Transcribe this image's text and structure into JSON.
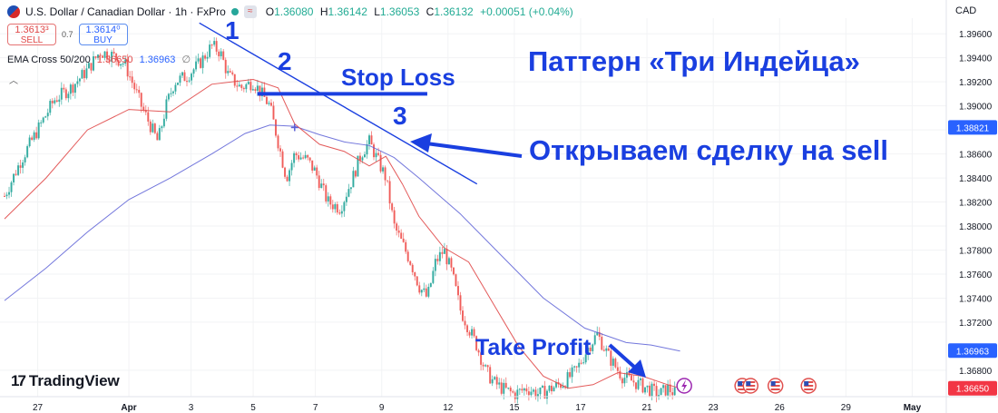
{
  "header": {
    "symbol": "U.S. Dollar / Canadian Dollar · 1h · FxPro",
    "badge": "≈",
    "ohlc": [
      {
        "k": "O",
        "v": "1.36080"
      },
      {
        "k": "H",
        "v": "1.36142"
      },
      {
        "k": "L",
        "v": "1.36053"
      },
      {
        "k": "C",
        "v": "1.36132"
      }
    ],
    "change": "+0.00051 (+0.04%)",
    "currency": "CAD"
  },
  "trade": {
    "sell_price": "1.3613³",
    "sell_label": "SELL",
    "spread": "0.7",
    "buy_price": "1.3614⁰",
    "buy_label": "BUY"
  },
  "indicator": {
    "name": "EMA Cross 50/200",
    "ema50": "1.36650",
    "ema200": "1.36963",
    "icon": "∅"
  },
  "collapse_icon": "chevron-up-icon",
  "logo": {
    "mark": "17",
    "text": "TradingView"
  },
  "annotations": {
    "pattern_title": "Паттерн «Три Индейца»",
    "p1": "1",
    "p2": "2",
    "p3": "3",
    "stop_loss": "Stop Loss",
    "open_trade": "Открываем сделку на sell",
    "take_profit": "Take Profit"
  },
  "colors": {
    "up": "#26a69a",
    "down": "#ef5350",
    "ema50": "#e04848",
    "ema200": "#5b5fd6",
    "annotation": "#1a3fe0",
    "tag_blue": "#2962ff",
    "tag_red": "#f23645"
  },
  "chart_data": {
    "type": "candlestick",
    "title": "U.S. Dollar / Canadian Dollar · 1h · FxPro",
    "ylim": [
      1.3658,
      1.3973
    ],
    "yticks": [
      "1.39600",
      "1.39400",
      "1.39200",
      "1.39000",
      "1.38800",
      "1.38600",
      "1.38400",
      "1.38200",
      "1.38000",
      "1.37800",
      "1.37600",
      "1.37400",
      "1.37200",
      "1.36800"
    ],
    "ytick_values": [
      1.396,
      1.394,
      1.392,
      1.39,
      1.388,
      1.386,
      1.384,
      1.382,
      1.38,
      1.378,
      1.376,
      1.374,
      1.372,
      1.368
    ],
    "xlim": [
      0,
      220
    ],
    "xticks": [
      {
        "label": "27",
        "t": 8
      },
      {
        "label": "Apr",
        "t": 30
      },
      {
        "label": "3",
        "t": 45
      },
      {
        "label": "5",
        "t": 60
      },
      {
        "label": "7",
        "t": 75
      },
      {
        "label": "9",
        "t": 91
      },
      {
        "label": "12",
        "t": 107
      },
      {
        "label": "15",
        "t": 123
      },
      {
        "label": "17",
        "t": 139
      },
      {
        "label": "21",
        "t": 155
      },
      {
        "label": "23",
        "t": 171
      },
      {
        "label": "26",
        "t": 187
      },
      {
        "label": "29",
        "t": 203
      },
      {
        "label": "May",
        "t": 219
      }
    ],
    "price_tags": [
      {
        "value": "1.38821",
        "y": 1.38821,
        "color": "#2962ff"
      },
      {
        "value": "1.36963",
        "y": 1.36963,
        "color": "#2962ff"
      },
      {
        "value": "1.36650",
        "y": 1.3665,
        "color": "#f23645"
      }
    ],
    "path": [
      [
        0,
        1.3825
      ],
      [
        4,
        1.3855
      ],
      [
        8,
        1.388
      ],
      [
        12,
        1.3905
      ],
      [
        16,
        1.3915
      ],
      [
        20,
        1.393
      ],
      [
        23,
        1.3945
      ],
      [
        26,
        1.3942
      ],
      [
        29,
        1.3935
      ],
      [
        31,
        1.3918
      ],
      [
        33,
        1.39
      ],
      [
        35,
        1.3885
      ],
      [
        37,
        1.387
      ],
      [
        39,
        1.39
      ],
      [
        41,
        1.392
      ],
      [
        44,
        1.3925
      ],
      [
        47,
        1.3935
      ],
      [
        50,
        1.395
      ],
      [
        52,
        1.3945
      ],
      [
        54,
        1.3925
      ],
      [
        57,
        1.3915
      ],
      [
        60,
        1.392
      ],
      [
        62,
        1.391
      ],
      [
        64,
        1.39
      ],
      [
        66,
        1.387
      ],
      [
        68,
        1.384
      ],
      [
        70,
        1.386
      ],
      [
        73,
        1.3855
      ],
      [
        75,
        1.3845
      ],
      [
        78,
        1.382
      ],
      [
        81,
        1.3815
      ],
      [
        84,
        1.384
      ],
      [
        86,
        1.386
      ],
      [
        88,
        1.387
      ],
      [
        90,
        1.3855
      ],
      [
        92,
        1.384
      ],
      [
        94,
        1.38
      ],
      [
        96,
        1.3785
      ],
      [
        98,
        1.377
      ],
      [
        100,
        1.375
      ],
      [
        102,
        1.374
      ],
      [
        104,
        1.377
      ],
      [
        106,
        1.378
      ],
      [
        108,
        1.376
      ],
      [
        110,
        1.373
      ],
      [
        112,
        1.3715
      ],
      [
        114,
        1.37
      ],
      [
        116,
        1.368
      ],
      [
        118,
        1.367
      ],
      [
        120,
        1.3665
      ],
      [
        123,
        1.366
      ],
      [
        126,
        1.3665
      ],
      [
        129,
        1.366
      ],
      [
        132,
        1.3665
      ],
      [
        135,
        1.367
      ],
      [
        138,
        1.368
      ],
      [
        141,
        1.37
      ],
      [
        143,
        1.371
      ],
      [
        146,
        1.369
      ],
      [
        149,
        1.3675
      ],
      [
        152,
        1.367
      ],
      [
        155,
        1.3665
      ],
      [
        158,
        1.366
      ],
      [
        160,
        1.3665
      ],
      [
        162,
        1.366
      ]
    ],
    "ema50": [
      [
        0,
        1.3806
      ],
      [
        10,
        1.384
      ],
      [
        20,
        1.388
      ],
      [
        30,
        1.3897
      ],
      [
        40,
        1.3895
      ],
      [
        50,
        1.3918
      ],
      [
        60,
        1.3922
      ],
      [
        66,
        1.3915
      ],
      [
        70,
        1.3885
      ],
      [
        76,
        1.3868
      ],
      [
        82,
        1.3862
      ],
      [
        88,
        1.385
      ],
      [
        92,
        1.3858
      ],
      [
        96,
        1.3835
      ],
      [
        100,
        1.3808
      ],
      [
        106,
        1.3782
      ],
      [
        112,
        1.377
      ],
      [
        118,
        1.3735
      ],
      [
        124,
        1.37
      ],
      [
        130,
        1.3675
      ],
      [
        136,
        1.3665
      ],
      [
        142,
        1.3668
      ],
      [
        148,
        1.3678
      ],
      [
        154,
        1.3675
      ],
      [
        160,
        1.3668
      ],
      [
        163,
        1.3665
      ]
    ],
    "ema200": [
      [
        0,
        1.3738
      ],
      [
        10,
        1.3765
      ],
      [
        20,
        1.3795
      ],
      [
        30,
        1.3822
      ],
      [
        40,
        1.384
      ],
      [
        50,
        1.386
      ],
      [
        58,
        1.3877
      ],
      [
        64,
        1.3884
      ],
      [
        70,
        1.3883
      ],
      [
        76,
        1.3876
      ],
      [
        82,
        1.387
      ],
      [
        88,
        1.3867
      ],
      [
        94,
        1.3857
      ],
      [
        100,
        1.384
      ],
      [
        110,
        1.381
      ],
      [
        120,
        1.3775
      ],
      [
        130,
        1.374
      ],
      [
        140,
        1.3715
      ],
      [
        150,
        1.3703
      ],
      [
        156,
        1.3701
      ],
      [
        163,
        1.3696
      ]
    ],
    "trendline": [
      [
        47,
        1.3969
      ],
      [
        114,
        1.3835
      ]
    ],
    "stop_loss_line": {
      "y": 1.391,
      "x": [
        61,
        102
      ]
    },
    "marker": {
      "t": 70,
      "y": 1.3882
    },
    "event_icons": [
      178,
      180,
      186,
      194
    ],
    "lightning_icon": 164
  }
}
